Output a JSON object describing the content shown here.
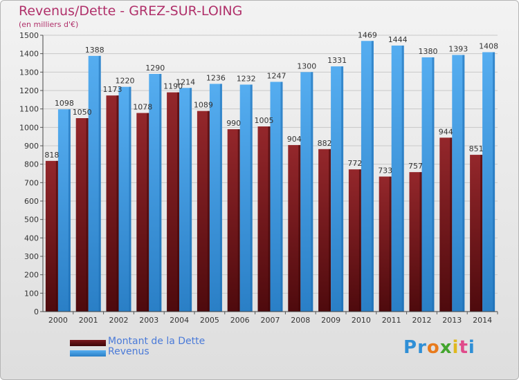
{
  "title": "Revenus/Dette - GREZ-SUR-LOING",
  "subtitle": "(en milliers d'€)",
  "logo": {
    "letters": [
      "P",
      "r",
      "o",
      "x",
      "i",
      "t",
      "i"
    ],
    "colors": [
      "#2f8fd6",
      "#2f8fd6",
      "#e87a1c",
      "#43a52e",
      "#e0b81e",
      "#e04a8a",
      "#2f8fd6"
    ]
  },
  "colors": {
    "dette": "#8b1e22",
    "dette_dark": "#5a0f12",
    "revenus": "#4aa3e8",
    "revenus_dark": "#1e78c4",
    "grid": "#c8c8c8"
  },
  "chart_data": {
    "type": "bar",
    "title": "Revenus/Dette - GREZ-SUR-LOING",
    "ylabel": "(en milliers d'€)",
    "xlabel": "",
    "ylim": [
      0,
      1500
    ],
    "ytick_step": 100,
    "grid": true,
    "legend_position": "bottom-left",
    "categories": [
      "2000",
      "2001",
      "2002",
      "2003",
      "2004",
      "2005",
      "2006",
      "2007",
      "2008",
      "2009",
      "2010",
      "2011",
      "2012",
      "2013",
      "2014"
    ],
    "series": [
      {
        "name": "Montant de la Dette",
        "values": [
          818,
          1050,
          1173,
          1078,
          1190,
          1089,
          990,
          1005,
          904,
          882,
          772,
          733,
          757,
          944,
          851
        ],
        "labels": [
          "818",
          "1050",
          "1173",
          "1078",
          "1190",
          "1089",
          "990",
          "1005",
          "904",
          "882",
          "772",
          "733",
          "757",
          "944",
          "851"
        ]
      },
      {
        "name": "Revenus",
        "values": [
          1098,
          1388,
          1220,
          1290,
          1214,
          1236,
          1232,
          1247,
          1300,
          1331,
          1469,
          1444,
          1380,
          1393,
          1408
        ],
        "labels": [
          "1098",
          "1388",
          "1220",
          "1290",
          "1214",
          "1236",
          "1232",
          "1247",
          "1300",
          "1331",
          "1469",
          "1444",
          "1380",
          "1393",
          "1408"
        ]
      }
    ]
  }
}
